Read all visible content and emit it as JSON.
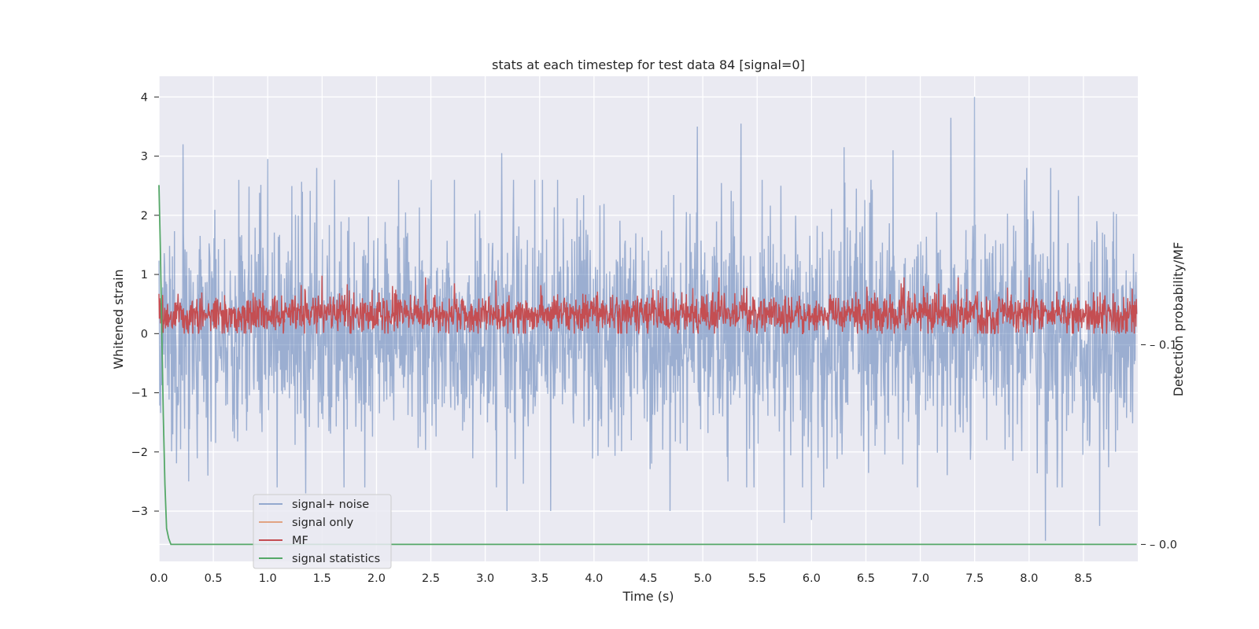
{
  "chart_data": {
    "type": "line",
    "title": "stats at each timestep for test data 84 [signal=0]",
    "xlabel": "Time (s)",
    "ylabel": "Whitened strain",
    "y2label": "Detection probability/MF",
    "xlim": [
      0.0,
      9.0
    ],
    "ylim": [
      -3.85,
      4.35
    ],
    "y2lim": [
      -0.0085,
      0.2345
    ],
    "x_ticks": [
      "0.0",
      "0.5",
      "1.0",
      "1.5",
      "2.0",
      "2.5",
      "3.0",
      "3.5",
      "4.0",
      "4.5",
      "5.0",
      "5.5",
      "6.0",
      "6.5",
      "7.0",
      "7.5",
      "8.0",
      "8.5"
    ],
    "y_ticks": [
      "4",
      "3",
      "2",
      "1",
      "0",
      "−1",
      "−2",
      "−3"
    ],
    "y2_ticks": [
      "0.1",
      "0.0"
    ],
    "grid": true,
    "legend_position": "lower-left",
    "series": [
      {
        "name": "signal+ noise",
        "color": "#4c72b0",
        "axis": "left",
        "description_range": [
          -3.5,
          4.0
        ],
        "peaks": [
          [
            0.22,
            3.2
          ],
          [
            1.0,
            2.95
          ],
          [
            1.45,
            2.8
          ],
          [
            3.15,
            3.05
          ],
          [
            4.95,
            3.5
          ],
          [
            5.35,
            3.55
          ],
          [
            6.3,
            3.15
          ],
          [
            6.75,
            3.1
          ],
          [
            7.28,
            3.65
          ],
          [
            7.5,
            4.0
          ],
          [
            7.98,
            2.8
          ],
          [
            8.2,
            2.8
          ]
        ],
        "troughs": [
          [
            0.45,
            -2.4
          ],
          [
            1.35,
            -2.7
          ],
          [
            3.2,
            -3.0
          ],
          [
            3.6,
            -3.0
          ],
          [
            4.7,
            -3.0
          ],
          [
            5.75,
            -3.2
          ],
          [
            6.0,
            -3.15
          ],
          [
            8.15,
            -3.5
          ],
          [
            8.65,
            -3.25
          ]
        ]
      },
      {
        "name": "signal only",
        "color": "#dd8452",
        "axis": "left",
        "values": []
      },
      {
        "name": "MF",
        "color": "#c44e52",
        "axis": "left",
        "description_range": [
          0.0,
          1.0
        ],
        "peaks": [
          [
            1.5,
            0.98
          ],
          [
            2.45,
            0.95
          ],
          [
            3.1,
            0.9
          ],
          [
            5.15,
            0.95
          ],
          [
            6.85,
            0.95
          ],
          [
            7.35,
            0.95
          ],
          [
            8.0,
            0.95
          ]
        ]
      },
      {
        "name": "signal statistics",
        "color": "#55a868",
        "axis": "right",
        "x": [
          0.0,
          0.012,
          0.025,
          0.04,
          0.055,
          0.07,
          0.09,
          0.11,
          8.99
        ],
        "values": [
          0.18,
          0.15,
          0.11,
          0.065,
          0.03,
          0.008,
          0.003,
          0.0,
          0.0
        ]
      }
    ]
  }
}
